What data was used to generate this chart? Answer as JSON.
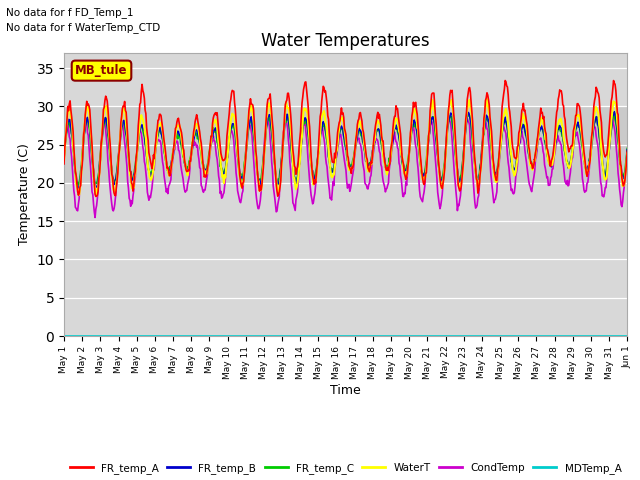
{
  "title": "Water Temperatures",
  "xlabel": "Time",
  "ylabel": "Temperature (C)",
  "note_line1": "No data for f FD_Temp_1",
  "note_line2": "No data for f WaterTemp_CTD",
  "mb_tule_label": "MB_tule",
  "ylim": [
    0,
    37
  ],
  "yticks": [
    0,
    5,
    10,
    15,
    20,
    25,
    30,
    35
  ],
  "gray_band_lo": 20,
  "gray_band_hi": 30,
  "series_colors": {
    "FR_temp_A": "#ff0000",
    "FR_temp_B": "#0000cc",
    "FR_temp_C": "#00cc00",
    "WaterT": "#ffff00",
    "CondTemp": "#cc00cc",
    "MDTemp_A": "#00cccc"
  },
  "legend_labels": [
    "FR_temp_A",
    "FR_temp_B",
    "FR_temp_C",
    "WaterT",
    "CondTemp",
    "MDTemp_A"
  ],
  "num_points": 744,
  "background_color": "#ffffff",
  "plot_bg_color": "#d8d8d8"
}
